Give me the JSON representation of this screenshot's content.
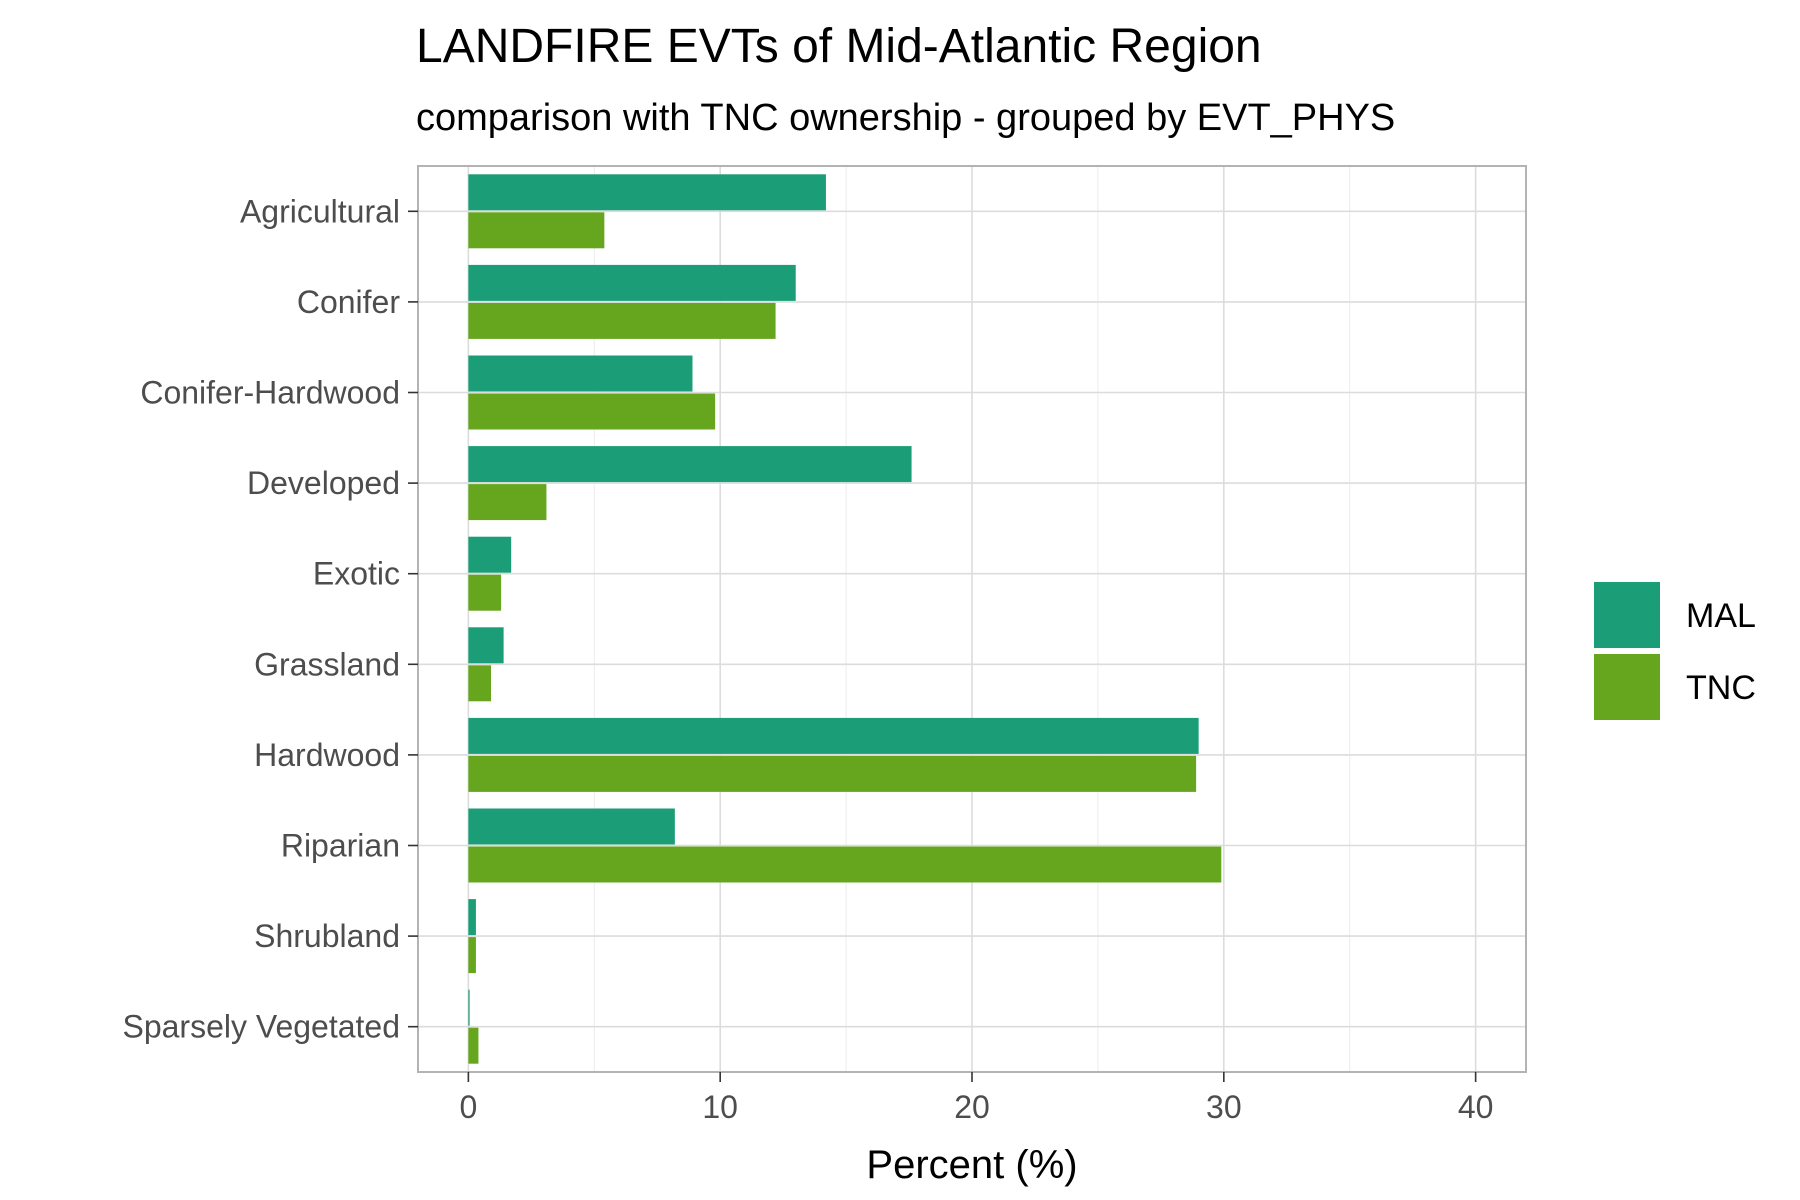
{
  "chart_data": {
    "type": "bar",
    "orientation": "horizontal",
    "title": "LANDFIRE EVTs of Mid-Atlantic Region",
    "subtitle": "comparison with TNC ownership - grouped by EVT_PHYS",
    "xlabel": "Percent (%)",
    "ylabel": "",
    "xlim": [
      -2,
      42
    ],
    "xticks": [
      0,
      10,
      20,
      30,
      40
    ],
    "grid": true,
    "legend_position": "right",
    "categories": [
      "Agricultural",
      "Conifer",
      "Conifer-Hardwood",
      "Developed",
      "Exotic",
      "Grassland",
      "Hardwood",
      "Riparian",
      "Shrubland",
      "Sparsely Vegetated"
    ],
    "series": [
      {
        "name": "MAL",
        "color": "#1b9e77",
        "values": [
          14.2,
          13.0,
          8.9,
          17.6,
          1.7,
          1.4,
          29.0,
          8.2,
          0.3,
          0.05
        ]
      },
      {
        "name": "TNC",
        "color": "#66a61e",
        "values": [
          5.4,
          12.2,
          9.8,
          3.1,
          1.3,
          0.9,
          28.9,
          29.9,
          0.3,
          0.4
        ]
      }
    ]
  }
}
